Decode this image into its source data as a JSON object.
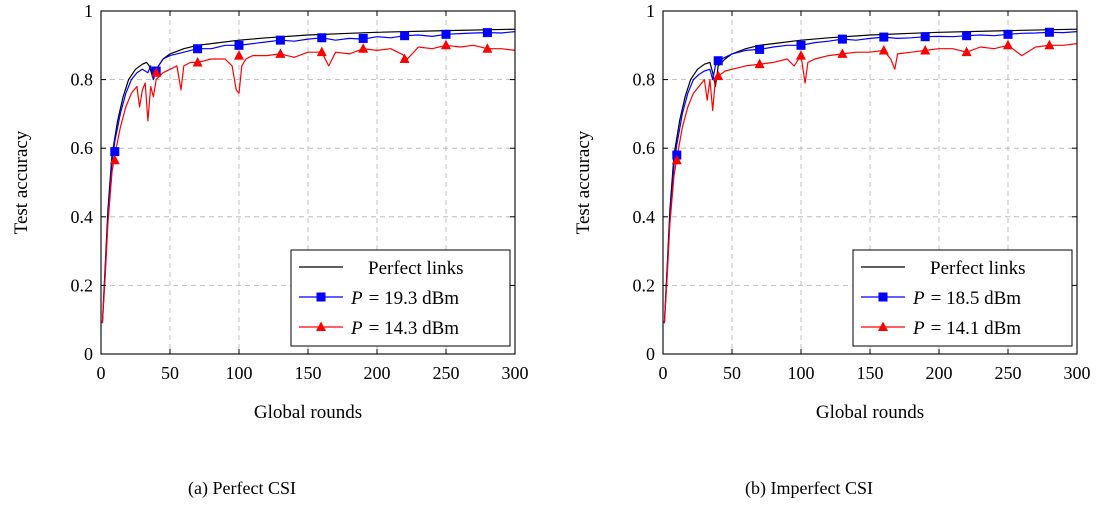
{
  "chart_data": [
    {
      "type": "line",
      "caption": "(a) Perfect CSI",
      "xlabel": "Global rounds",
      "ylabel": "Test accuracy",
      "xlim": [
        0,
        300
      ],
      "ylim": [
        0,
        1
      ],
      "xticks": [
        0,
        50,
        100,
        150,
        200,
        250,
        300
      ],
      "yticks": [
        0,
        0.2,
        0.4,
        0.6,
        0.8,
        1
      ],
      "ytick_labels": [
        "0",
        "0.2",
        "0.4",
        "0.6",
        "0.8",
        "1"
      ],
      "grid": true,
      "legend_position": "bottom-right",
      "series": [
        {
          "name": "Perfect links",
          "color": "#000000",
          "marker": "none",
          "x": [
            1,
            3,
            5,
            8,
            12,
            16,
            20,
            25,
            30,
            33,
            35,
            38,
            40,
            45,
            50,
            60,
            70,
            80,
            100,
            120,
            150,
            180,
            200,
            250,
            300
          ],
          "y": [
            0.09,
            0.25,
            0.42,
            0.58,
            0.68,
            0.75,
            0.8,
            0.83,
            0.845,
            0.85,
            0.84,
            0.8,
            0.83,
            0.86,
            0.875,
            0.89,
            0.9,
            0.905,
            0.915,
            0.922,
            0.93,
            0.935,
            0.938,
            0.943,
            0.947
          ]
        },
        {
          "name": "P = 19.3 dBm",
          "label_var": "P",
          "label_value": "= 19.3 dBm",
          "color": "#0000ff",
          "marker": "square",
          "x": [
            1,
            3,
            5,
            8,
            10,
            14,
            18,
            22,
            26,
            30,
            34,
            36,
            38,
            40,
            45,
            50,
            60,
            70,
            80,
            90,
            100,
            110,
            120,
            130,
            140,
            150,
            160,
            170,
            180,
            190,
            200,
            210,
            220,
            230,
            240,
            250,
            260,
            270,
            280,
            290,
            300
          ],
          "y": [
            0.09,
            0.24,
            0.4,
            0.56,
            0.62,
            0.7,
            0.76,
            0.8,
            0.82,
            0.83,
            0.82,
            0.84,
            0.8,
            0.83,
            0.86,
            0.87,
            0.88,
            0.89,
            0.89,
            0.9,
            0.9,
            0.905,
            0.91,
            0.915,
            0.912,
            0.918,
            0.922,
            0.915,
            0.92,
            0.918,
            0.925,
            0.922,
            0.928,
            0.93,
            0.926,
            0.932,
            0.934,
            0.936,
            0.937,
            0.936,
            0.94
          ],
          "marker_x": [
            10,
            40,
            70,
            100,
            130,
            160,
            190,
            220,
            250,
            280
          ],
          "marker_y": [
            0.59,
            0.825,
            0.89,
            0.9,
            0.915,
            0.922,
            0.92,
            0.928,
            0.932,
            0.937
          ]
        },
        {
          "name": "P = 14.3 dBm",
          "label_var": "P",
          "label_value": "= 14.3 dBm",
          "color": "#ff0000",
          "marker": "triangle",
          "x": [
            1,
            3,
            5,
            8,
            10,
            14,
            18,
            22,
            26,
            28,
            30,
            32,
            34,
            36,
            38,
            40,
            45,
            50,
            55,
            58,
            60,
            65,
            70,
            80,
            90,
            95,
            98,
            100,
            102,
            105,
            110,
            120,
            130,
            140,
            150,
            160,
            165,
            170,
            180,
            190,
            200,
            210,
            220,
            222,
            230,
            240,
            250,
            260,
            270,
            280,
            290,
            300
          ],
          "y": [
            0.09,
            0.22,
            0.38,
            0.53,
            0.58,
            0.66,
            0.72,
            0.76,
            0.78,
            0.72,
            0.77,
            0.79,
            0.68,
            0.78,
            0.75,
            0.8,
            0.82,
            0.83,
            0.84,
            0.77,
            0.84,
            0.85,
            0.85,
            0.86,
            0.86,
            0.84,
            0.77,
            0.76,
            0.84,
            0.86,
            0.87,
            0.87,
            0.875,
            0.865,
            0.88,
            0.88,
            0.84,
            0.88,
            0.875,
            0.89,
            0.885,
            0.89,
            0.87,
            0.86,
            0.895,
            0.89,
            0.9,
            0.895,
            0.9,
            0.89,
            0.89,
            0.885
          ],
          "marker_x": [
            10,
            40,
            70,
            100,
            130,
            160,
            190,
            220,
            250,
            280
          ],
          "marker_y": [
            0.565,
            0.82,
            0.85,
            0.87,
            0.875,
            0.88,
            0.89,
            0.86,
            0.9,
            0.89
          ]
        }
      ]
    },
    {
      "type": "line",
      "caption": "(b) Imperfect CSI",
      "xlabel": "Global rounds",
      "ylabel": "Test accuracy",
      "xlim": [
        0,
        300
      ],
      "ylim": [
        0,
        1
      ],
      "xticks": [
        0,
        50,
        100,
        150,
        200,
        250,
        300
      ],
      "yticks": [
        0,
        0.2,
        0.4,
        0.6,
        0.8,
        1
      ],
      "ytick_labels": [
        "0",
        "0.2",
        "0.4",
        "0.6",
        "0.8",
        "1"
      ],
      "grid": true,
      "legend_position": "bottom-right",
      "series": [
        {
          "name": "Perfect links",
          "color": "#000000",
          "marker": "none",
          "x": [
            1,
            3,
            5,
            8,
            12,
            16,
            20,
            25,
            30,
            34,
            36,
            38,
            40,
            45,
            50,
            60,
            70,
            80,
            100,
            120,
            150,
            180,
            200,
            250,
            300
          ],
          "y": [
            0.09,
            0.25,
            0.42,
            0.58,
            0.68,
            0.75,
            0.8,
            0.83,
            0.845,
            0.85,
            0.82,
            0.78,
            0.84,
            0.86,
            0.875,
            0.89,
            0.9,
            0.905,
            0.915,
            0.922,
            0.93,
            0.935,
            0.938,
            0.943,
            0.947
          ]
        },
        {
          "name": "P = 18.5 dBm",
          "label_var": "P",
          "label_value": "= 18.5 dBm",
          "color": "#0000ff",
          "marker": "square",
          "x": [
            1,
            3,
            5,
            8,
            10,
            14,
            18,
            22,
            26,
            30,
            34,
            36,
            38,
            40,
            45,
            50,
            60,
            70,
            80,
            90,
            100,
            110,
            120,
            130,
            140,
            150,
            160,
            170,
            180,
            190,
            200,
            210,
            220,
            230,
            240,
            250,
            260,
            270,
            280,
            290,
            300
          ],
          "y": [
            0.09,
            0.24,
            0.4,
            0.55,
            0.61,
            0.7,
            0.76,
            0.8,
            0.815,
            0.825,
            0.83,
            0.8,
            0.84,
            0.855,
            0.865,
            0.875,
            0.885,
            0.888,
            0.895,
            0.9,
            0.9,
            0.908,
            0.912,
            0.918,
            0.915,
            0.92,
            0.924,
            0.92,
            0.922,
            0.925,
            0.926,
            0.925,
            0.928,
            0.93,
            0.928,
            0.932,
            0.935,
            0.936,
            0.938,
            0.937,
            0.94
          ],
          "marker_x": [
            10,
            40,
            70,
            100,
            130,
            160,
            190,
            220,
            250,
            280
          ],
          "marker_y": [
            0.58,
            0.855,
            0.888,
            0.9,
            0.918,
            0.924,
            0.925,
            0.928,
            0.932,
            0.938
          ]
        },
        {
          "name": "P = 14.1 dBm",
          "label_var": "P",
          "label_value": "= 14.1 dBm",
          "color": "#ff0000",
          "marker": "triangle",
          "x": [
            1,
            3,
            5,
            8,
            10,
            14,
            18,
            22,
            26,
            30,
            32,
            34,
            36,
            38,
            40,
            45,
            50,
            60,
            70,
            80,
            90,
            95,
            100,
            103,
            105,
            110,
            120,
            130,
            140,
            150,
            160,
            165,
            168,
            170,
            180,
            190,
            200,
            210,
            220,
            230,
            240,
            250,
            260,
            270,
            280,
            290,
            300
          ],
          "y": [
            0.09,
            0.22,
            0.38,
            0.52,
            0.57,
            0.66,
            0.72,
            0.76,
            0.78,
            0.8,
            0.74,
            0.8,
            0.71,
            0.8,
            0.81,
            0.825,
            0.83,
            0.84,
            0.845,
            0.85,
            0.86,
            0.84,
            0.87,
            0.79,
            0.85,
            0.86,
            0.87,
            0.875,
            0.88,
            0.88,
            0.885,
            0.86,
            0.83,
            0.875,
            0.88,
            0.885,
            0.89,
            0.89,
            0.88,
            0.895,
            0.89,
            0.9,
            0.87,
            0.895,
            0.9,
            0.9,
            0.905
          ],
          "marker_x": [
            10,
            40,
            70,
            100,
            130,
            160,
            190,
            220,
            250,
            280
          ],
          "marker_y": [
            0.565,
            0.81,
            0.845,
            0.87,
            0.875,
            0.885,
            0.885,
            0.88,
            0.9,
            0.9
          ]
        }
      ]
    }
  ]
}
